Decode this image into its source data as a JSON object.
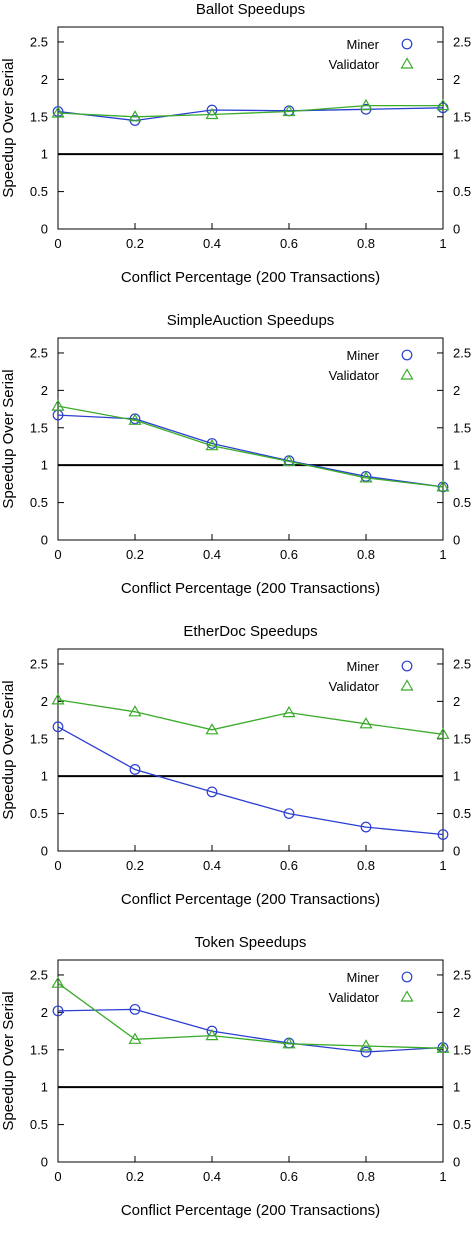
{
  "chart_data": [
    {
      "type": "line",
      "title": "Ballot Speedups",
      "xlabel": "Conflict Percentage (200 Transactions)",
      "ylabel": "Speedup Over Serial",
      "xlim": [
        0,
        1
      ],
      "ylim": [
        0,
        2.7
      ],
      "xticks": [
        "0",
        "0.2",
        "0.4",
        "0.6",
        "0.8",
        "1"
      ],
      "yticks": [
        "0",
        "0.5",
        "1",
        "1.5",
        "2",
        "2.5"
      ],
      "reference_line": 1,
      "legend_position": "top-right",
      "x": [
        0,
        0.2,
        0.4,
        0.6,
        0.8,
        1
      ],
      "series": [
        {
          "name": "Miner",
          "marker": "circle",
          "color": "#2a3fd1",
          "values": [
            1.57,
            1.45,
            1.59,
            1.58,
            1.6,
            1.62
          ]
        },
        {
          "name": "Validator",
          "marker": "triangle",
          "color": "#3aab2a",
          "values": [
            1.55,
            1.5,
            1.53,
            1.57,
            1.65,
            1.65
          ]
        }
      ]
    },
    {
      "type": "line",
      "title": "SimpleAuction Speedups",
      "xlabel": "Conflict Percentage (200 Transactions)",
      "ylabel": "Speedup Over Serial",
      "xlim": [
        0,
        1
      ],
      "ylim": [
        0,
        2.7
      ],
      "xticks": [
        "0",
        "0.2",
        "0.4",
        "0.6",
        "0.8",
        "1"
      ],
      "yticks": [
        "0",
        "0.5",
        "1",
        "1.5",
        "2",
        "2.5"
      ],
      "reference_line": 1,
      "legend_position": "top-right",
      "x": [
        0,
        0.2,
        0.4,
        0.6,
        0.8,
        1
      ],
      "series": [
        {
          "name": "Miner",
          "marker": "circle",
          "color": "#2a3fd1",
          "values": [
            1.67,
            1.62,
            1.29,
            1.06,
            0.85,
            0.71
          ]
        },
        {
          "name": "Validator",
          "marker": "triangle",
          "color": "#3aab2a",
          "values": [
            1.79,
            1.6,
            1.26,
            1.05,
            0.83,
            0.71
          ]
        }
      ]
    },
    {
      "type": "line",
      "title": "EtherDoc Speedups",
      "xlabel": "Conflict Percentage (200 Transactions)",
      "ylabel": "Speedup Over Serial",
      "xlim": [
        0,
        1
      ],
      "ylim": [
        0,
        2.7
      ],
      "xticks": [
        "0",
        "0.2",
        "0.4",
        "0.6",
        "0.8",
        "1"
      ],
      "yticks": [
        "0",
        "0.5",
        "1",
        "1.5",
        "2",
        "2.5"
      ],
      "reference_line": 1,
      "legend_position": "top-right",
      "x": [
        0,
        0.2,
        0.4,
        0.6,
        0.8,
        1
      ],
      "series": [
        {
          "name": "Miner",
          "marker": "circle",
          "color": "#2a3fd1",
          "values": [
            1.66,
            1.09,
            0.79,
            0.5,
            0.32,
            0.22
          ]
        },
        {
          "name": "Validator",
          "marker": "triangle",
          "color": "#3aab2a",
          "values": [
            2.02,
            1.86,
            1.62,
            1.85,
            1.7,
            1.56
          ]
        }
      ]
    },
    {
      "type": "line",
      "title": "Token Speedups",
      "xlabel": "Conflict Percentage (200 Transactions)",
      "ylabel": "Speedup Over Serial",
      "xlim": [
        0,
        1
      ],
      "ylim": [
        0,
        2.7
      ],
      "xticks": [
        "0",
        "0.2",
        "0.4",
        "0.6",
        "0.8",
        "1"
      ],
      "yticks": [
        "0",
        "0.5",
        "1",
        "1.5",
        "2",
        "2.5"
      ],
      "reference_line": 1,
      "legend_position": "top-right",
      "x": [
        0,
        0.2,
        0.4,
        0.6,
        0.8,
        1
      ],
      "series": [
        {
          "name": "Miner",
          "marker": "circle",
          "color": "#2a3fd1",
          "values": [
            2.02,
            2.04,
            1.75,
            1.59,
            1.47,
            1.53
          ]
        },
        {
          "name": "Validator",
          "marker": "triangle",
          "color": "#3aab2a",
          "values": [
            2.39,
            1.64,
            1.69,
            1.58,
            1.55,
            1.52
          ]
        }
      ]
    }
  ]
}
